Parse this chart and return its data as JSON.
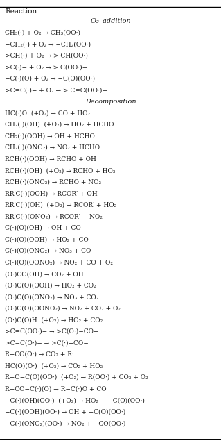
{
  "title": "Reaction",
  "o2_addition_rows": [
    "CH₃(·) + O₂ → CH₃(OO·)",
    "−CH₂(·) + O₂ → −CH₂(OO·)",
    ">CH(·) + O₂ → > CH(OO·)",
    ">C(·)− + O₂ → > C(OO·)−",
    "−C(·)(O) + O₂ → −C(O)(OO·)",
    ">C=C(·)− + O₂ → > C=C(OO·)−"
  ],
  "decomp_rows": [
    "HC(·)O  (+O₂) → CO + HO₂",
    "CH₂(·)(OH)  (+O₂) → HO₂ + HCHO",
    "CH₂(·)(OOH) → OH + HCHO",
    "CH₂(·)(ONO₂) → NO₂ + HCHO",
    "RCH(·)(OOH) → RCHO + OH",
    "RCH(·)(OH)  (+O₂) → RCHO + HO₂",
    "RCH(·)(ONO₂) → RCHO + NO₂",
    "RR′C(·)(OOH) → RCOR′ + OH",
    "RR′C(·)(OH)  (+O₂) → RCOR′ + HO₂",
    "RR′C(·)(ONO₂) → RCOR′ + NO₂",
    "C(·)(O)(OH) → OH + CO",
    "C(·)(O)(OOH) → HO₂ + CO",
    "C(·)(O)(ONO₂) → NO₃ + CO",
    "C(·)(O)(OONO₂) → NO₂ + CO + O₂",
    "(O·)CO(OH) → CO₂ + OH",
    "(O·)C(O)(OOH) → HO₂ + CO₂",
    "(O·)C(O)(ONO₂) → NO₃ + CO₂",
    "(O·)C(O)(OONO₂) → NO₂ + CO₂ + O₂",
    "(O·)C(O)H  (+O₂) → HO₂ + CO₂",
    ">C=C(OO·)− → >C(O·)−CO−",
    ">C=C(O·)− → >C(·)−CO−",
    "R−CO(O·) → CO₂ + R·",
    "HC(O)(O·)  (+O₂) → CO₂ + HO₂",
    "R−O−C(O)(OO·)  (+O₂) → R(OO·) + CO₂ + O₂",
    "R−CO−C(·)(O) → R−C(·)O + CO",
    "−C(·)(OH)(OO·)  (+O₂) → HO₂ + −C(O)(OO·)",
    "−C(·)(OOH)(OO·) → OH + −C(O)(OO·)",
    "−C(·)(ONO₂)(OO·) → NO₂ + −CO(OO·)"
  ],
  "bg_color": "#ffffff",
  "text_color": "#1a1a1a",
  "font_size": 6.5,
  "header_font_size": 7.0,
  "title_font_size": 7.5
}
